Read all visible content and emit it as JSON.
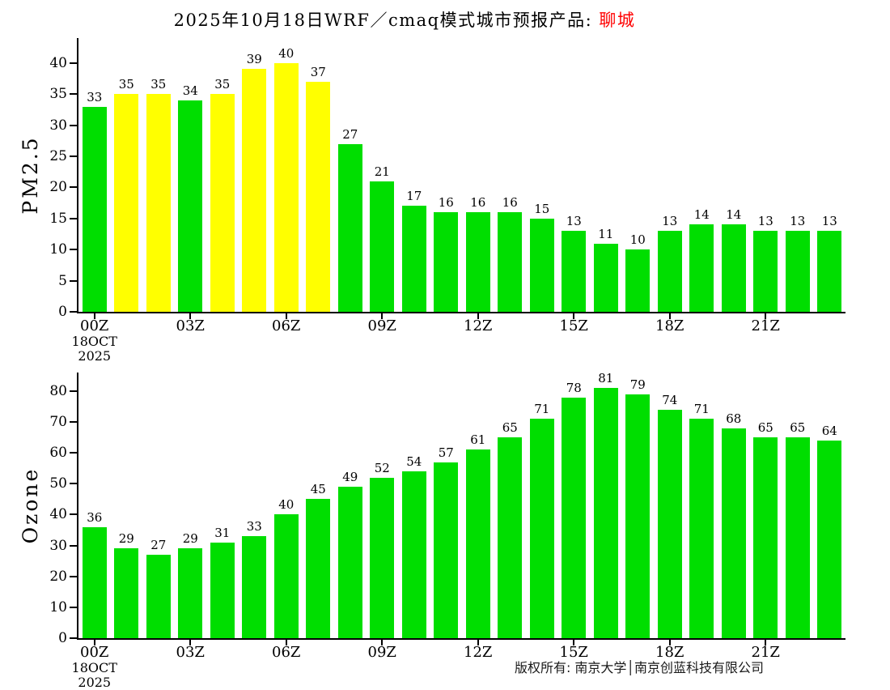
{
  "title": {
    "main": "2025年10月18日WRF／cmaq模式城市预报产品: ",
    "city": "聊城"
  },
  "footer": {
    "copyright": "版权所有: 南京大学│南京创蓝科技有限公司"
  },
  "colors": {
    "green": "#00DE00",
    "yellow": "#FFFF00",
    "highlight": "#FF0000",
    "axis": "#000000"
  },
  "chart_data": [
    {
      "type": "bar",
      "ylabel": "PM2.5",
      "xlabel": "",
      "ylim": [
        0,
        44
      ],
      "yticks": [
        0,
        5,
        10,
        15,
        20,
        25,
        30,
        35,
        40
      ],
      "grid": false,
      "legend": "none",
      "x_ticks": [
        {
          "index": 0,
          "label": "00Z",
          "sublines": [
            "18OCT",
            "2025"
          ]
        },
        {
          "index": 3,
          "label": "03Z"
        },
        {
          "index": 6,
          "label": "06Z"
        },
        {
          "index": 9,
          "label": "09Z"
        },
        {
          "index": 12,
          "label": "12Z"
        },
        {
          "index": 15,
          "label": "15Z"
        },
        {
          "index": 18,
          "label": "18Z"
        },
        {
          "index": 21,
          "label": "21Z"
        }
      ],
      "values": [
        33,
        35,
        35,
        34,
        35,
        39,
        40,
        37,
        27,
        21,
        17,
        16,
        16,
        16,
        15,
        13,
        11,
        10,
        13,
        14,
        14,
        13,
        13,
        13
      ],
      "bar_colors": [
        "green",
        "yellow",
        "yellow",
        "green",
        "yellow",
        "yellow",
        "yellow",
        "yellow",
        "green",
        "green",
        "green",
        "green",
        "green",
        "green",
        "green",
        "green",
        "green",
        "green",
        "green",
        "green",
        "green",
        "green",
        "green",
        "green"
      ]
    },
    {
      "type": "bar",
      "ylabel": "Ozone",
      "xlabel": "",
      "ylim": [
        0,
        86
      ],
      "yticks": [
        0,
        10,
        20,
        30,
        40,
        50,
        60,
        70,
        80
      ],
      "grid": false,
      "legend": "none",
      "x_ticks": [
        {
          "index": 0,
          "label": "00Z",
          "sublines": [
            "18OCT",
            "2025"
          ]
        },
        {
          "index": 3,
          "label": "03Z"
        },
        {
          "index": 6,
          "label": "06Z"
        },
        {
          "index": 9,
          "label": "09Z"
        },
        {
          "index": 12,
          "label": "12Z"
        },
        {
          "index": 15,
          "label": "15Z"
        },
        {
          "index": 18,
          "label": "18Z"
        },
        {
          "index": 21,
          "label": "21Z"
        }
      ],
      "values": [
        36,
        29,
        27,
        29,
        31,
        33,
        40,
        45,
        49,
        52,
        54,
        57,
        61,
        65,
        71,
        78,
        81,
        79,
        74,
        71,
        68,
        65,
        65,
        64
      ],
      "bar_colors": [
        "green",
        "green",
        "green",
        "green",
        "green",
        "green",
        "green",
        "green",
        "green",
        "green",
        "green",
        "green",
        "green",
        "green",
        "green",
        "green",
        "green",
        "green",
        "green",
        "green",
        "green",
        "green",
        "green",
        "green"
      ]
    }
  ]
}
